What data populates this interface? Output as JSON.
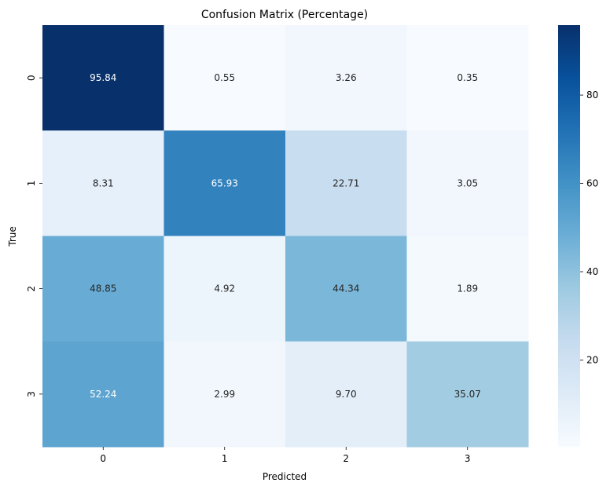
{
  "chart_data": {
    "type": "heatmap",
    "title": "Confusion Matrix (Percentage)",
    "xlabel": "Predicted",
    "ylabel": "True",
    "x_categories": [
      "0",
      "1",
      "2",
      "3"
    ],
    "y_categories": [
      "0",
      "1",
      "2",
      "3"
    ],
    "values": [
      [
        95.84,
        0.55,
        3.26,
        0.35
      ],
      [
        8.31,
        65.93,
        22.71,
        3.05
      ],
      [
        48.85,
        4.92,
        44.34,
        1.89
      ],
      [
        52.24,
        2.99,
        9.7,
        35.07
      ]
    ],
    "value_labels": [
      [
        "95.84",
        "0.55",
        "3.26",
        "0.35"
      ],
      [
        "8.31",
        "65.93",
        "22.71",
        "3.05"
      ],
      [
        "48.85",
        "4.92",
        "44.34",
        "1.89"
      ],
      [
        "52.24",
        "2.99",
        "9.70",
        "35.07"
      ]
    ],
    "colormap": "Blues",
    "color_range": [
      0.35,
      95.84
    ],
    "colorbar_ticks": [
      "20",
      "40",
      "60",
      "80"
    ],
    "colorbar_tick_values": [
      20,
      40,
      60,
      80
    ],
    "colors": {
      "low": "#f7fbff",
      "high": "#08306b",
      "text_dark": "#262626",
      "text_light": "#ffffff"
    }
  }
}
